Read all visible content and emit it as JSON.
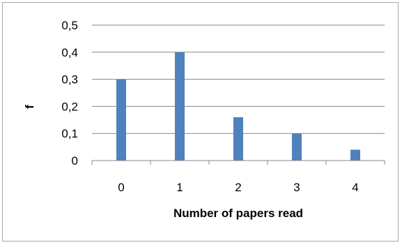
{
  "chart_data": {
    "type": "bar",
    "categories": [
      "0",
      "1",
      "2",
      "3",
      "4"
    ],
    "values": [
      0.3,
      0.4,
      0.16,
      0.1,
      0.04
    ],
    "xlabel": "Number of papers read",
    "ylabel": "f",
    "ylim": [
      0,
      0.5
    ],
    "y_ticks": [
      "0",
      "0,1",
      "0,2",
      "0,3",
      "0,4",
      "0,5"
    ],
    "grid": true,
    "bar_color": "#4f81bd",
    "grid_color": "#878787"
  }
}
